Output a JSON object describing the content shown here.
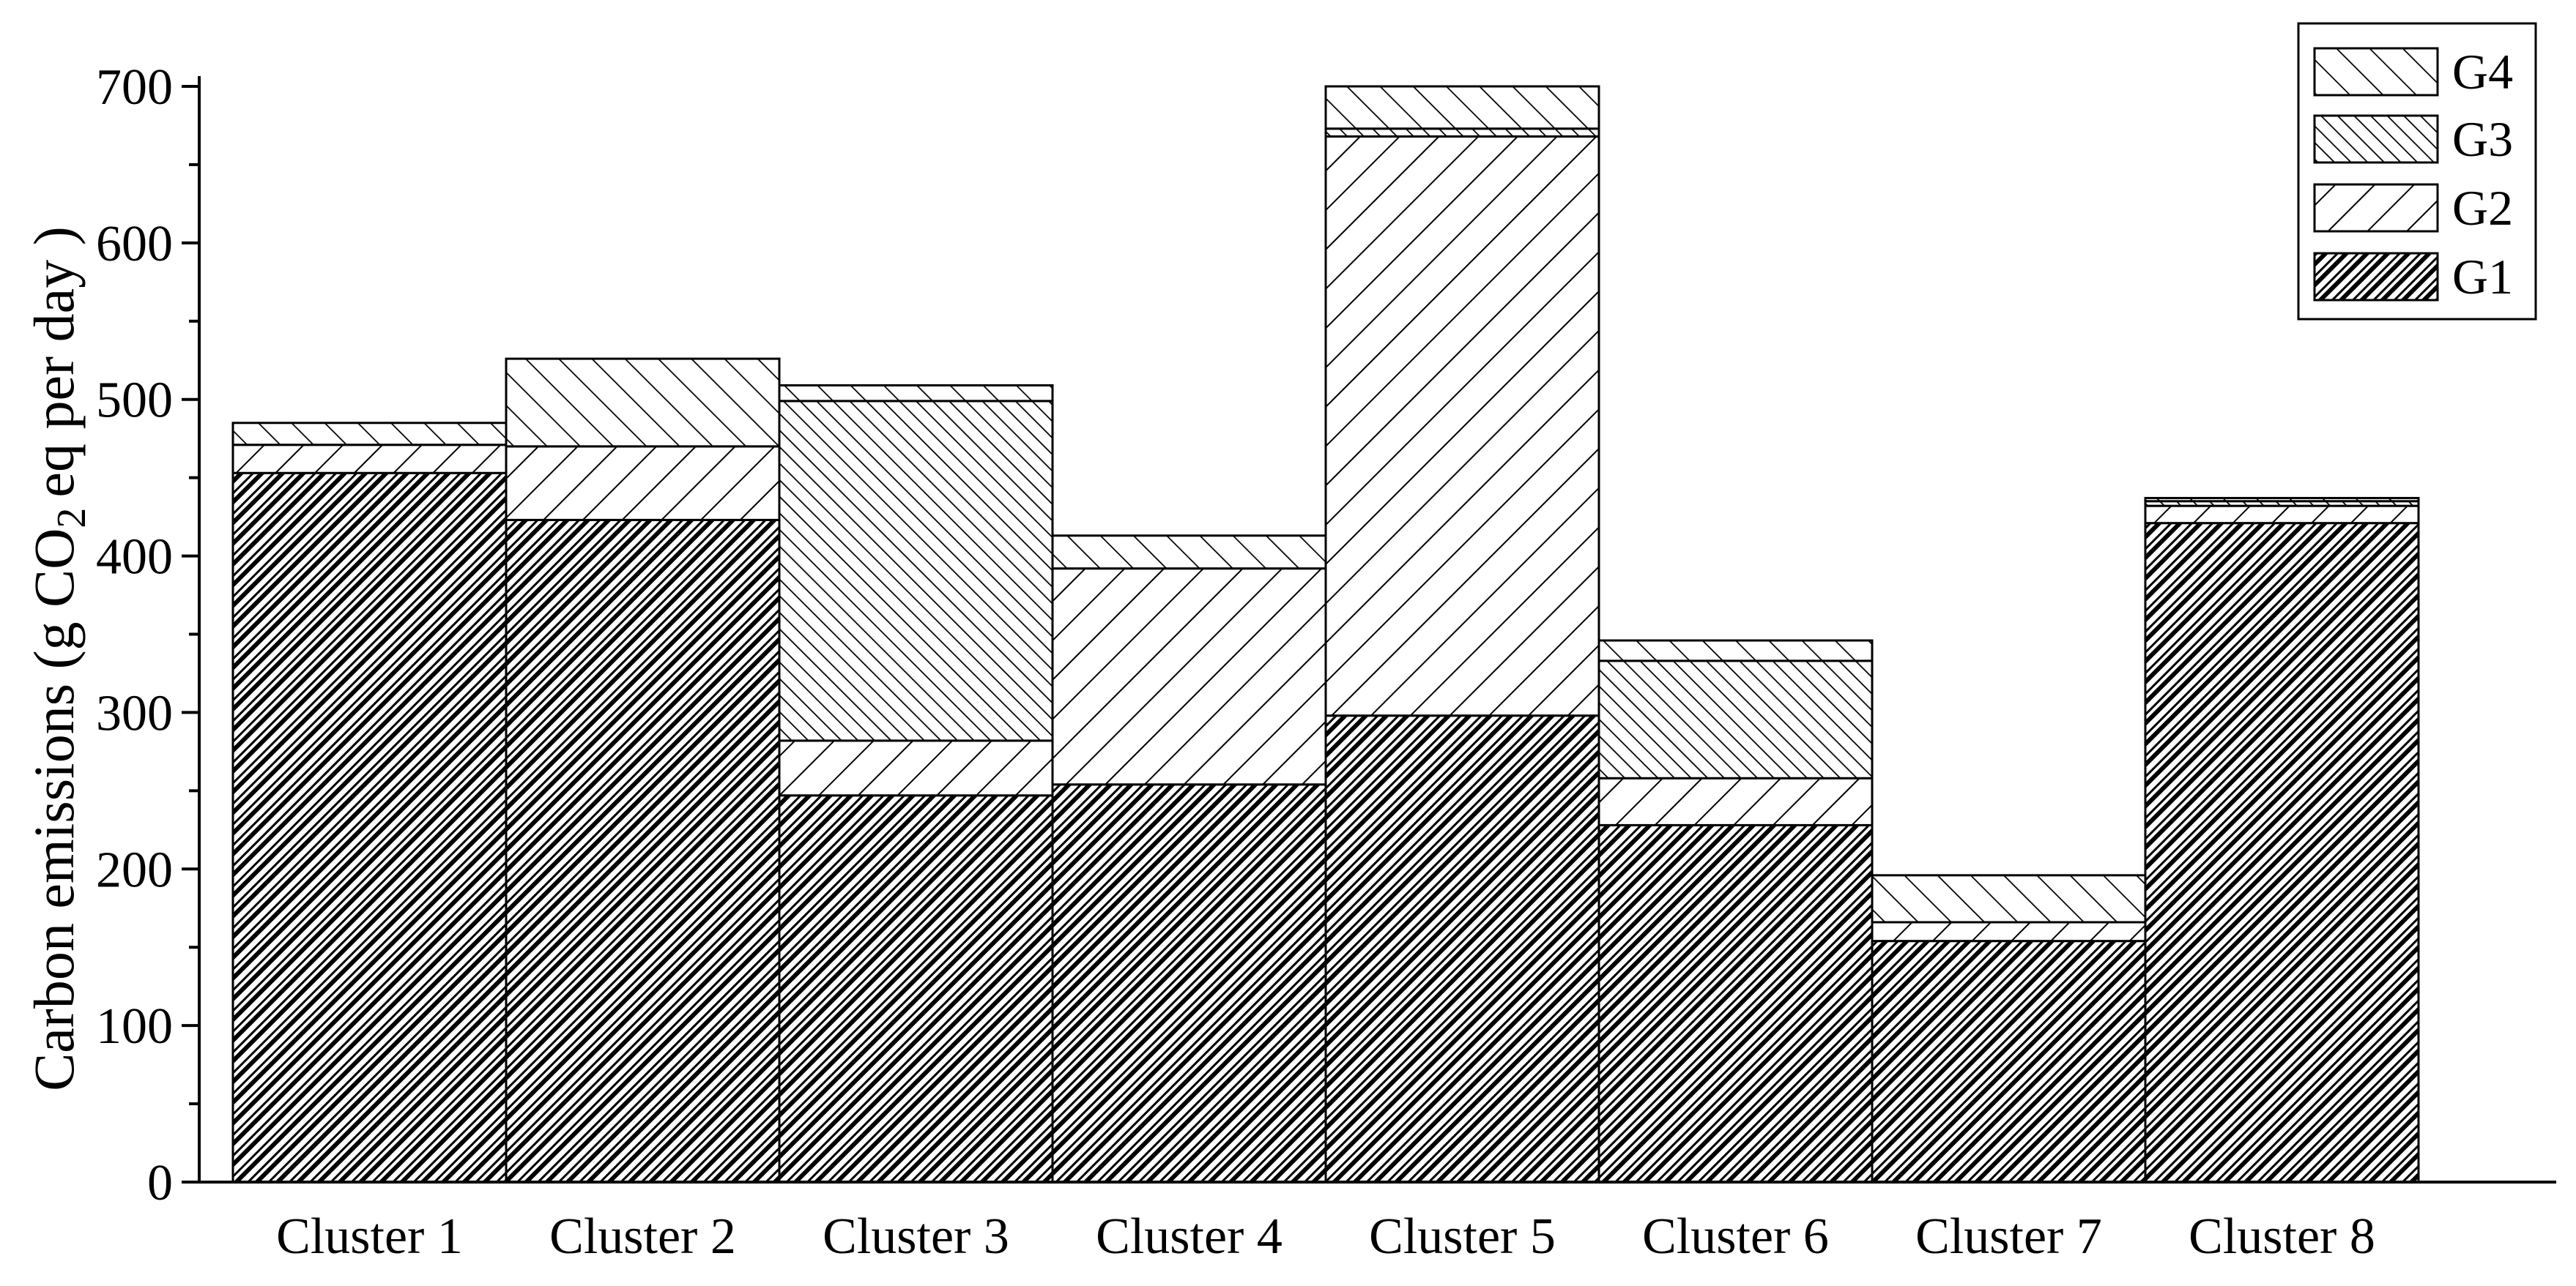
{
  "chart_data": {
    "type": "bar",
    "stacked": true,
    "categories": [
      "Cluster 1",
      "Cluster 2",
      "Cluster 3",
      "Cluster 4",
      "Cluster 5",
      "Cluster 6",
      "Cluster 7",
      "Cluster 8"
    ],
    "series": [
      {
        "name": "G1",
        "pattern": "dense-diagonal",
        "values": [
          453,
          423,
          247,
          254,
          298,
          228,
          154,
          421
        ]
      },
      {
        "name": "G2",
        "pattern": "forward-diagonal",
        "values": [
          18,
          47,
          35,
          138,
          370,
          30,
          12,
          11
        ]
      },
      {
        "name": "G3",
        "pattern": "backward-diagonal-dense",
        "values": [
          0,
          0,
          217,
          0,
          5,
          75,
          0,
          3
        ]
      },
      {
        "name": "G4",
        "pattern": "backward-diagonal",
        "values": [
          14,
          56,
          10,
          21,
          27,
          13,
          30,
          2
        ]
      }
    ],
    "ylabel_main": "Carbon emissions (g CO",
    "ylabel_sub": "2",
    "ylabel_tail": "eq per day )",
    "ylim": [
      0,
      700
    ],
    "yticks": [
      "0",
      "100",
      "200",
      "300",
      "400",
      "500",
      "600",
      "700"
    ],
    "legend": {
      "placement": "top-right",
      "order": [
        "G4",
        "G3",
        "G2",
        "G1"
      ]
    },
    "grid": false
  }
}
